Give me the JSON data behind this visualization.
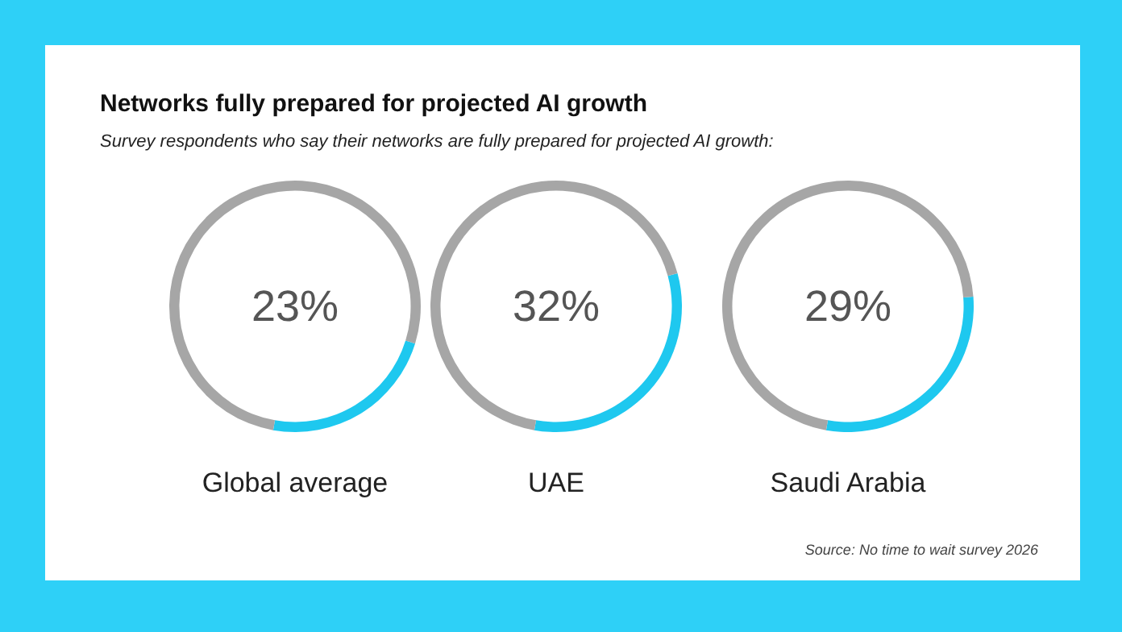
{
  "chart_data": [
    {
      "type": "donut",
      "title": "Networks fully prepared for projected AI growth",
      "subtitle": "Survey respondents who say their networks are fully prepared for projected AI growth:",
      "categories": [
        null,
        null
      ],
      "values": [
        23,
        77
      ],
      "colors": [
        "#1ec8ef",
        "#a6a6a6"
      ],
      "annotations": [
        "23%"
      ],
      "xlabel": "Global average"
    },
    {
      "type": "donut",
      "categories": [
        null,
        null
      ],
      "values": [
        32,
        68
      ],
      "colors": [
        "#1ec8ef",
        "#a6a6a6"
      ],
      "annotations": [
        "32%"
      ],
      "xlabel": "UAE"
    },
    {
      "type": "donut",
      "categories": [
        null,
        null
      ],
      "values": [
        29,
        71
      ],
      "colors": [
        "#1ec8ef",
        "#a6a6a6"
      ],
      "annotations": [
        "29%",
        "Source: No time to wait survey 2026"
      ],
      "xlabel": "Saudi Arabia"
    }
  ]
}
